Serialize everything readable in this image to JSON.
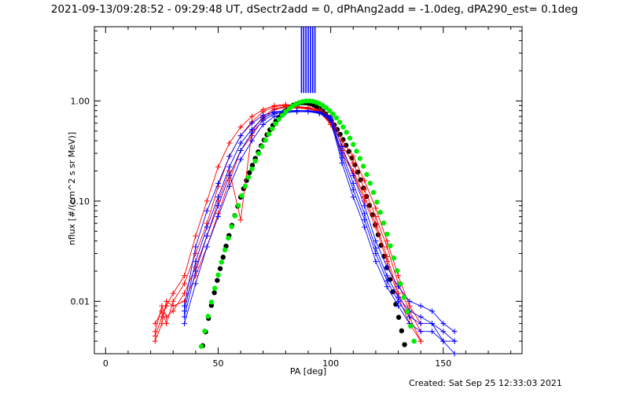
{
  "title": "2021-09-13/09:28:52 - 09:29:48 UT, dSectr2add = 0, dPhAng2add = -1.0deg, dPA290_est=  0.1deg",
  "created": "Created: Sat Sep 25 12:33:03 2021",
  "chart_data": {
    "type": "scatter",
    "xlabel": "PA [deg]",
    "ylabel": "nflux [#/(cm^2 s sr MeV)]",
    "xlim": [
      -5,
      185
    ],
    "ylim": [
      0.003,
      5.5
    ],
    "yscale": "log",
    "xticks": [
      0,
      50,
      100,
      150
    ],
    "xtick_labels": [
      "0",
      "50",
      "100",
      "150"
    ],
    "yticks": [
      0.01,
      0.1,
      1.0
    ],
    "ytick_labels": [
      "0.01",
      "0.10",
      "1.00"
    ],
    "colors": {
      "red": "#ff0000",
      "blue": "#0000ff",
      "green": "#00ee00",
      "black": "#000000"
    },
    "red_x": [
      22,
      25,
      27,
      30,
      35,
      40,
      45,
      50,
      55,
      60,
      65,
      70,
      75,
      80,
      85,
      90,
      95,
      100,
      105,
      110,
      115,
      120,
      125,
      130,
      135,
      140
    ],
    "blue_x": [
      35,
      40,
      45,
      50,
      55,
      60,
      65,
      70,
      75,
      80,
      85,
      90,
      95,
      100,
      105,
      110,
      115,
      120,
      125,
      130,
      135,
      140,
      145,
      150,
      155
    ],
    "red_series": [
      {
        "values": [
          0.0045,
          0.007,
          0.009,
          0.012,
          0.018,
          0.045,
          0.1,
          0.22,
          0.38,
          0.55,
          0.7,
          0.82,
          0.9,
          0.92,
          0.88,
          0.86,
          0.82,
          0.7,
          0.4,
          0.28,
          0.16,
          0.085,
          0.04,
          0.018,
          0.009,
          0.006
        ]
      },
      {
        "values": [
          0.006,
          0.008,
          0.006,
          0.01,
          0.015,
          0.03,
          0.06,
          0.14,
          0.28,
          0.45,
          0.62,
          0.78,
          0.88,
          0.9,
          0.87,
          0.85,
          0.8,
          0.65,
          0.36,
          0.24,
          0.13,
          0.07,
          0.035,
          0.015,
          0.008,
          0.005
        ]
      },
      {
        "values": [
          0.005,
          0.009,
          0.007,
          0.008,
          0.012,
          0.022,
          0.045,
          0.1,
          0.2,
          0.065,
          0.5,
          0.7,
          0.84,
          0.88,
          0.86,
          0.84,
          0.79,
          0.6,
          0.32,
          0.2,
          0.11,
          0.06,
          0.028,
          0.012,
          0.007,
          0.004
        ]
      },
      {
        "values": [
          0.004,
          0.006,
          0.01,
          0.009,
          0.01,
          0.018,
          0.035,
          0.075,
          0.16,
          0.32,
          0.45,
          0.66,
          0.82,
          0.86,
          0.85,
          0.83,
          0.78,
          0.58,
          0.3,
          0.19,
          0.1,
          0.055,
          0.025,
          0.011,
          0.006,
          0.004
        ]
      }
    ],
    "blue_series": [
      {
        "values": [
          0.009,
          0.035,
          0.08,
          0.15,
          0.28,
          0.45,
          0.6,
          0.72,
          0.78,
          0.8,
          0.8,
          0.8,
          0.78,
          0.7,
          0.35,
          0.18,
          0.09,
          0.04,
          0.022,
          0.014,
          0.01,
          0.009,
          0.008,
          0.006,
          0.005
        ]
      },
      {
        "values": [
          0.008,
          0.025,
          0.055,
          0.11,
          0.22,
          0.38,
          0.52,
          0.68,
          0.76,
          0.79,
          0.8,
          0.79,
          0.77,
          0.68,
          0.3,
          0.15,
          0.075,
          0.034,
          0.018,
          0.011,
          0.008,
          0.007,
          0.006,
          0.005,
          0.004
        ]
      },
      {
        "values": [
          0.007,
          0.02,
          0.045,
          0.09,
          0.18,
          0.32,
          0.48,
          0.64,
          0.74,
          0.78,
          0.79,
          0.78,
          0.76,
          0.66,
          0.27,
          0.13,
          0.065,
          0.03,
          0.016,
          0.01,
          0.007,
          0.006,
          0.006,
          0.004,
          0.004
        ]
      },
      {
        "values": [
          0.006,
          0.015,
          0.035,
          0.07,
          0.14,
          0.26,
          0.4,
          0.58,
          0.7,
          0.76,
          0.78,
          0.78,
          0.75,
          0.64,
          0.24,
          0.11,
          0.055,
          0.025,
          0.014,
          0.009,
          0.006,
          0.005,
          0.005,
          0.004,
          0.003
        ]
      }
    ],
    "blue_vertical_lines": {
      "x": [
        87,
        88,
        89,
        90,
        91,
        92,
        93
      ],
      "y_from": 1.2,
      "y_to": 5.5
    },
    "green_fit": {
      "x_min": 32,
      "x_max": 145,
      "peak_x": 90,
      "peak_y": 1.0,
      "sigma": 20.0,
      "step": 1.5
    },
    "black_fit": {
      "x_min": 21,
      "x_max": 133,
      "peak_x": 88,
      "peak_y": 0.96,
      "sigma": 19.0,
      "step": 1.3
    }
  }
}
